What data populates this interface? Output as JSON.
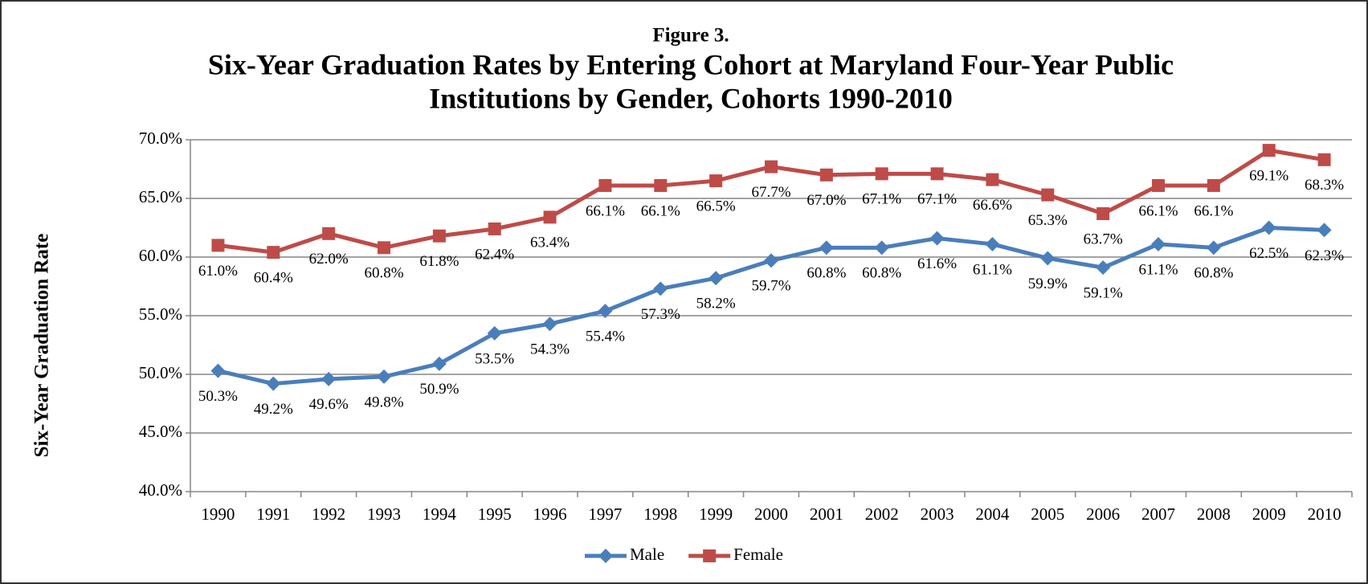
{
  "chart_data": {
    "type": "line",
    "subtitle": "Figure 3.",
    "title": [
      "Six-Year Graduation Rates by Entering Cohort at Maryland Four-Year Public",
      "Institutions by Gender, Cohorts 1990-2010"
    ],
    "y_label": "Six-Year Graduation Rate",
    "categories": [
      "1990",
      "1991",
      "1992",
      "1993",
      "1994",
      "1995",
      "1996",
      "1997",
      "1998",
      "1999",
      "2000",
      "2001",
      "2002",
      "2003",
      "2004",
      "2005",
      "2006",
      "2007",
      "2008",
      "2009",
      "2010"
    ],
    "series": [
      {
        "name": "Male",
        "color": "#4a7ebb",
        "marker": "diamond",
        "values": [
          50.3,
          49.2,
          49.6,
          49.8,
          50.9,
          53.5,
          54.3,
          55.4,
          57.3,
          58.2,
          59.7,
          60.8,
          60.8,
          61.6,
          61.1,
          59.9,
          59.1,
          61.1,
          60.8,
          62.5,
          62.3
        ],
        "value_labels": [
          "50.3%",
          "49.2%",
          "49.6%",
          "49.8%",
          "50.9%",
          "53.5%",
          "54.3%",
          "55.4%",
          "57.3%",
          "58.2%",
          "59.7%",
          "60.8%",
          "60.8%",
          "61.6%",
          "61.1%",
          "59.9%",
          "59.1%",
          "61.1%",
          "60.8%",
          "62.5%",
          "62.3%"
        ]
      },
      {
        "name": "Female",
        "color": "#be4b48",
        "marker": "square",
        "values": [
          61.0,
          60.4,
          62.0,
          60.8,
          61.8,
          62.4,
          63.4,
          66.1,
          66.1,
          66.5,
          67.7,
          67.0,
          67.1,
          67.1,
          66.6,
          65.3,
          63.7,
          66.1,
          66.1,
          69.1,
          68.3
        ],
        "value_labels": [
          "61.0%",
          "60.4%",
          "62.0%",
          "60.8%",
          "61.8%",
          "62.4%",
          "63.4%",
          "66.1%",
          "66.1%",
          "66.5%",
          "67.7%",
          "67.0%",
          "67.1%",
          "67.1%",
          "66.6%",
          "65.3%",
          "63.7%",
          "66.1%",
          "66.1%",
          "69.1%",
          "68.3%"
        ]
      }
    ],
    "ylim": [
      40,
      70
    ],
    "yticks": [
      {
        "value": 40,
        "label": "40.0%"
      },
      {
        "value": 45,
        "label": "45.0%"
      },
      {
        "value": 50,
        "label": "50.0%"
      },
      {
        "value": 55,
        "label": "55.0%"
      },
      {
        "value": 60,
        "label": "60.0%"
      },
      {
        "value": 65,
        "label": "65.0%"
      },
      {
        "value": 70,
        "label": "70.0%"
      }
    ],
    "grid": true,
    "legend": "bottom"
  }
}
